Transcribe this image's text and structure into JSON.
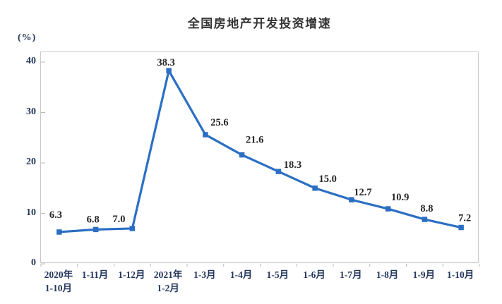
{
  "chart_data": {
    "type": "line",
    "title": "全国房地产开发投资增速",
    "unit_label": "(%)",
    "categories": [
      "2020年\n1-10月",
      "1-11月",
      "1-12月",
      "2021年\n1-2月",
      "1-3月",
      "1-4月",
      "1-5月",
      "1-6月",
      "1-7月",
      "1-8月",
      "1-9月",
      "1-10月"
    ],
    "values": [
      6.3,
      6.8,
      7.0,
      38.3,
      25.6,
      21.6,
      18.3,
      15.0,
      12.7,
      10.9,
      8.8,
      7.2
    ],
    "data_labels": [
      "6.3",
      "6.8",
      "7.0",
      "38.3",
      "25.6",
      "21.6",
      "18.3",
      "15.0",
      "12.7",
      "10.9",
      "8.8",
      "7.2"
    ],
    "xlabel": "",
    "ylabel": "(%)",
    "ylim": [
      0,
      40
    ],
    "y_ticks": [
      0,
      10,
      20,
      30,
      40
    ],
    "grid": false,
    "legend": "none",
    "marker": "square",
    "colors": {
      "line": "#2b6fc4",
      "marker": "#2b6fc4",
      "axis_text": "#24365c",
      "data_label": "#262626",
      "title": "#333333",
      "plot_border": "#c9c9c9",
      "tick": "#b9b9b9",
      "background": "#ffffff"
    }
  }
}
